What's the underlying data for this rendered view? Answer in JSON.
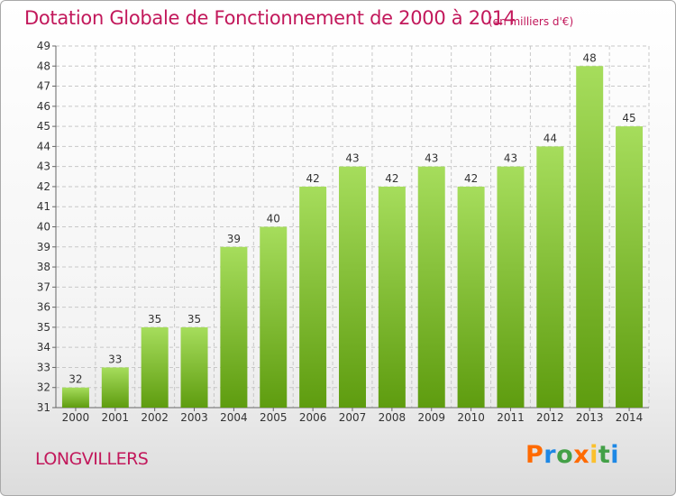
{
  "title": "Dotation Globale de Fonctionnement de 2000 à 2014",
  "unit_note": "(en milliers d'€)",
  "commune": "LONGVILLERS",
  "logo": {
    "text": "Proxiti",
    "colors": [
      "#ff6a00",
      "#1e88e5",
      "#43a047",
      "#ff6a00",
      "#fbc02d",
      "#43a047",
      "#1e88e5"
    ]
  },
  "colors": {
    "title": "#c2185b",
    "bar_light": "#a6dd5c",
    "bar_dark": "#5e9c0f",
    "grid": "#c8c8c8"
  },
  "chart_data": {
    "type": "bar",
    "title": "Dotation Globale de Fonctionnement de 2000 à 2014",
    "categories": [
      "2000",
      "2001",
      "2002",
      "2003",
      "2004",
      "2005",
      "2006",
      "2007",
      "2008",
      "2009",
      "2010",
      "2011",
      "2012",
      "2013",
      "2014"
    ],
    "values": [
      32,
      33,
      35,
      35,
      39,
      40,
      42,
      43,
      42,
      43,
      42,
      43,
      44,
      48,
      45
    ],
    "ylim": [
      31,
      49
    ],
    "yticks": [
      31,
      32,
      33,
      34,
      35,
      36,
      37,
      38,
      39,
      40,
      41,
      42,
      43,
      44,
      45,
      46,
      47,
      48,
      49
    ],
    "grid": true,
    "grid_style": "dashed",
    "data_labels": true
  }
}
